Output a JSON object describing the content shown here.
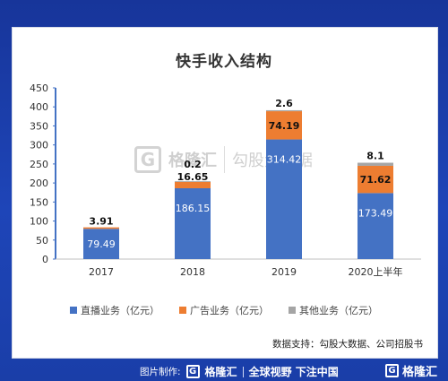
{
  "title": "快手收入结构",
  "chart_data": {
    "type": "bar",
    "stacked": true,
    "categories": [
      "2017",
      "2018",
      "2019",
      "2020上半年"
    ],
    "series": [
      {
        "name": "直播业务（亿元）",
        "values": [
          79.49,
          186.15,
          314.42,
          173.49
        ],
        "color": "#4472c4",
        "labels": [
          "79.49",
          "186.15",
          "314.42",
          "173.49"
        ]
      },
      {
        "name": "广告业务（亿元）",
        "values": [
          3.91,
          16.65,
          74.19,
          71.62
        ],
        "color": "#ed7d31",
        "labels": [
          "3.91",
          "16.65",
          "74.19",
          "71.62"
        ]
      },
      {
        "name": "其他业务（亿元）",
        "values": [
          0,
          0.2,
          2.6,
          8.1
        ],
        "color": "#a5a5a5",
        "labels": [
          "",
          "0.2",
          "2.6",
          "8.1"
        ]
      }
    ],
    "ylim": [
      0,
      450
    ],
    "yticks": [
      0,
      50,
      100,
      150,
      200,
      250,
      300,
      350,
      400,
      450
    ],
    "grid": false,
    "legend_position": "bottom"
  },
  "source_text": "数据支持：勾股大数据、公司招股书",
  "watermark": {
    "logo_char": "G",
    "brand": "格隆汇",
    "brand2": "勾股大数据"
  },
  "footer": {
    "credit_label": "图片制作:",
    "logo_char": "G",
    "brand": "格隆汇",
    "slogan": "全球视野 下注中国",
    "right_logo_char": "G",
    "right_brand": "格隆汇"
  }
}
